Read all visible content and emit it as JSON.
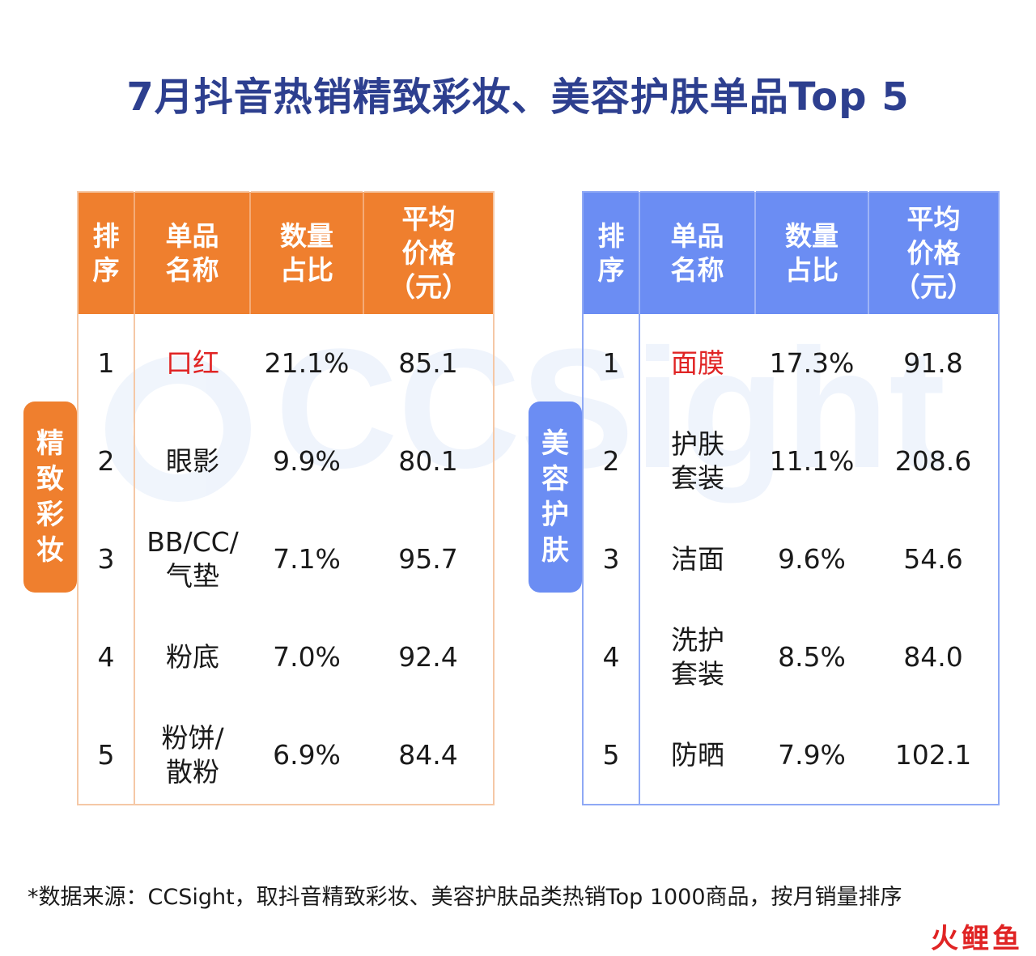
{
  "title": "7月抖音热销精致彩妆、美容护肤单品Top  5",
  "watermark": "CCSight",
  "chart_data": [
    {
      "type": "table",
      "category": "精致彩妆",
      "columns": [
        "排\n序",
        "单品\n名称",
        "数量\n占比",
        "平均\n价格\n（元）"
      ],
      "rows": [
        {
          "rank": "1",
          "item": "口红",
          "share": "21.1%",
          "price": "85.1",
          "highlight": true
        },
        {
          "rank": "2",
          "item": "眼影",
          "share": "9.9%",
          "price": "80.1",
          "highlight": false
        },
        {
          "rank": "3",
          "item": "BB/CC/\n气垫",
          "share": "7.1%",
          "price": "95.7",
          "highlight": false
        },
        {
          "rank": "4",
          "item": "粉底",
          "share": "7.0%",
          "price": "92.4",
          "highlight": false
        },
        {
          "rank": "5",
          "item": "粉饼/\n散粉",
          "share": "6.9%",
          "price": "84.4",
          "highlight": false
        }
      ]
    },
    {
      "type": "table",
      "category": "美容护肤",
      "columns": [
        "排\n序",
        "单品\n名称",
        "数量\n占比",
        "平均\n价格\n（元）"
      ],
      "rows": [
        {
          "rank": "1",
          "item": "面膜",
          "share": "17.3%",
          "price": "91.8",
          "highlight": true
        },
        {
          "rank": "2",
          "item": "护肤\n套装",
          "share": "11.1%",
          "price": "208.6",
          "highlight": false
        },
        {
          "rank": "3",
          "item": "洁面",
          "share": "9.6%",
          "price": "54.6",
          "highlight": false
        },
        {
          "rank": "4",
          "item": "洗护\n套装",
          "share": "8.5%",
          "price": "84.0",
          "highlight": false
        },
        {
          "rank": "5",
          "item": "防晒",
          "share": "7.9%",
          "price": "102.1",
          "highlight": false
        }
      ]
    }
  ],
  "side_tabs": {
    "beauty": "精致彩妆",
    "skincare": "美容护肤"
  },
  "note": "*数据来源：CCSight，取抖音精致彩妆、美容护肤品类热销Top 1000商品，按月销量排序",
  "logo": "火鲤鱼",
  "colors": {
    "title": "#2d3f8f",
    "beauty_accent": "#ef7f2e",
    "skincare_accent": "#6b8df3",
    "highlight": "#e02424"
  }
}
